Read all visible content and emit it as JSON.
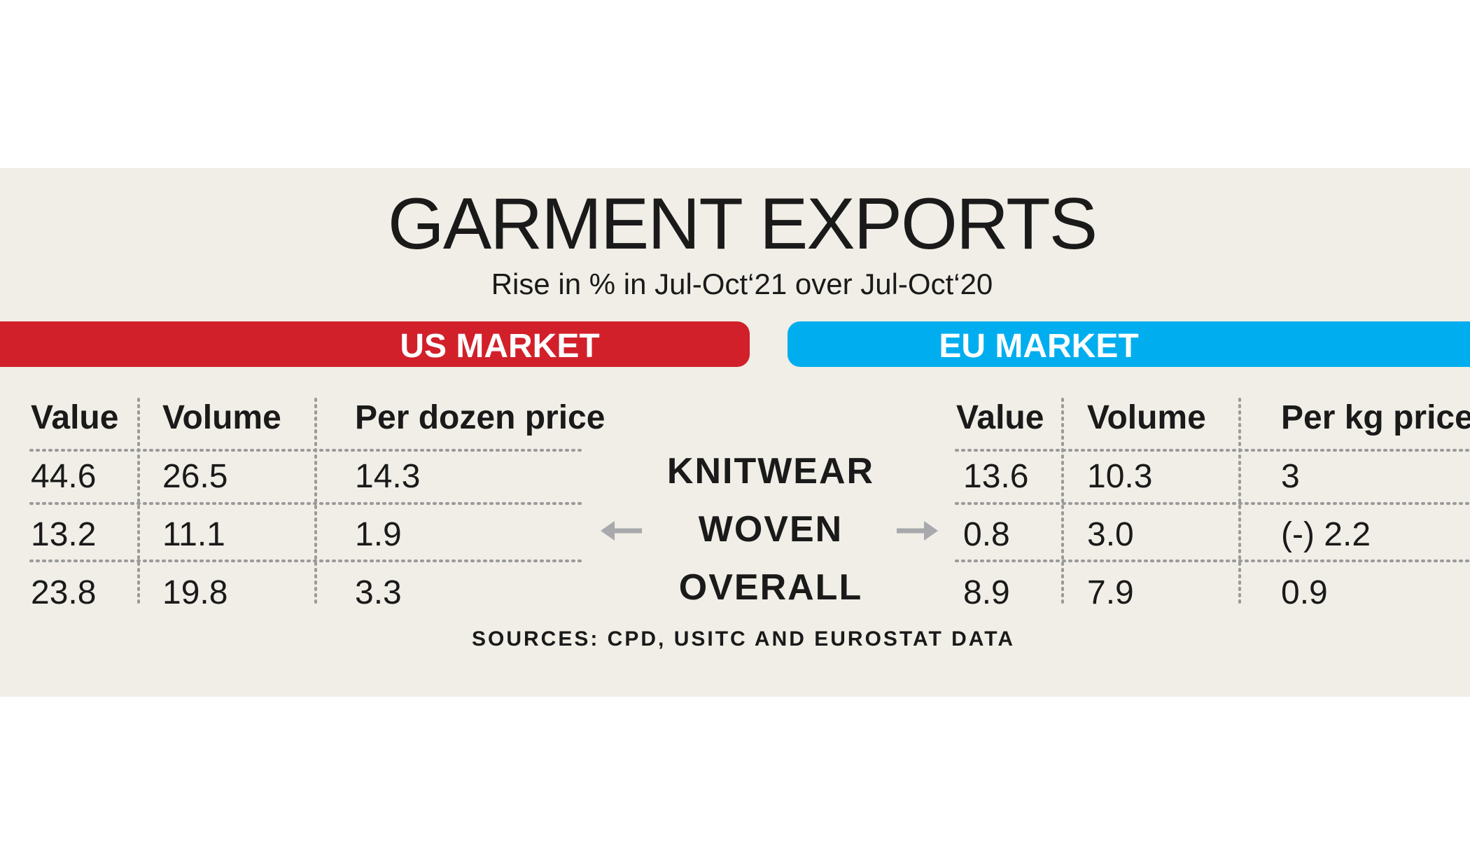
{
  "header": {
    "title": "GARMENT EXPORTS",
    "subtitle": "Rise in % in Jul-Oct‘21 over Jul-Oct‘20"
  },
  "us_market": {
    "label": "US MARKET",
    "columns": [
      "Value",
      "Volume",
      "Per dozen price"
    ],
    "rows": [
      [
        "44.6",
        "26.5",
        "14.3"
      ],
      [
        "13.2",
        "11.1",
        "1.9"
      ],
      [
        "23.8",
        "19.8",
        "3.3"
      ]
    ]
  },
  "eu_market": {
    "label": "EU MARKET",
    "columns": [
      "Value",
      "Volume",
      "Per kg price"
    ],
    "rows": [
      [
        "13.6",
        "10.3",
        "3"
      ],
      [
        "0.8",
        "3.0",
        "(-) 2.2"
      ],
      [
        "8.9",
        "7.9",
        "0.9"
      ]
    ]
  },
  "categories": [
    "KNITWEAR",
    "WOVEN",
    "OVERALL"
  ],
  "source": "SOURCES: CPD, USITC AND EUROSTAT DATA"
}
